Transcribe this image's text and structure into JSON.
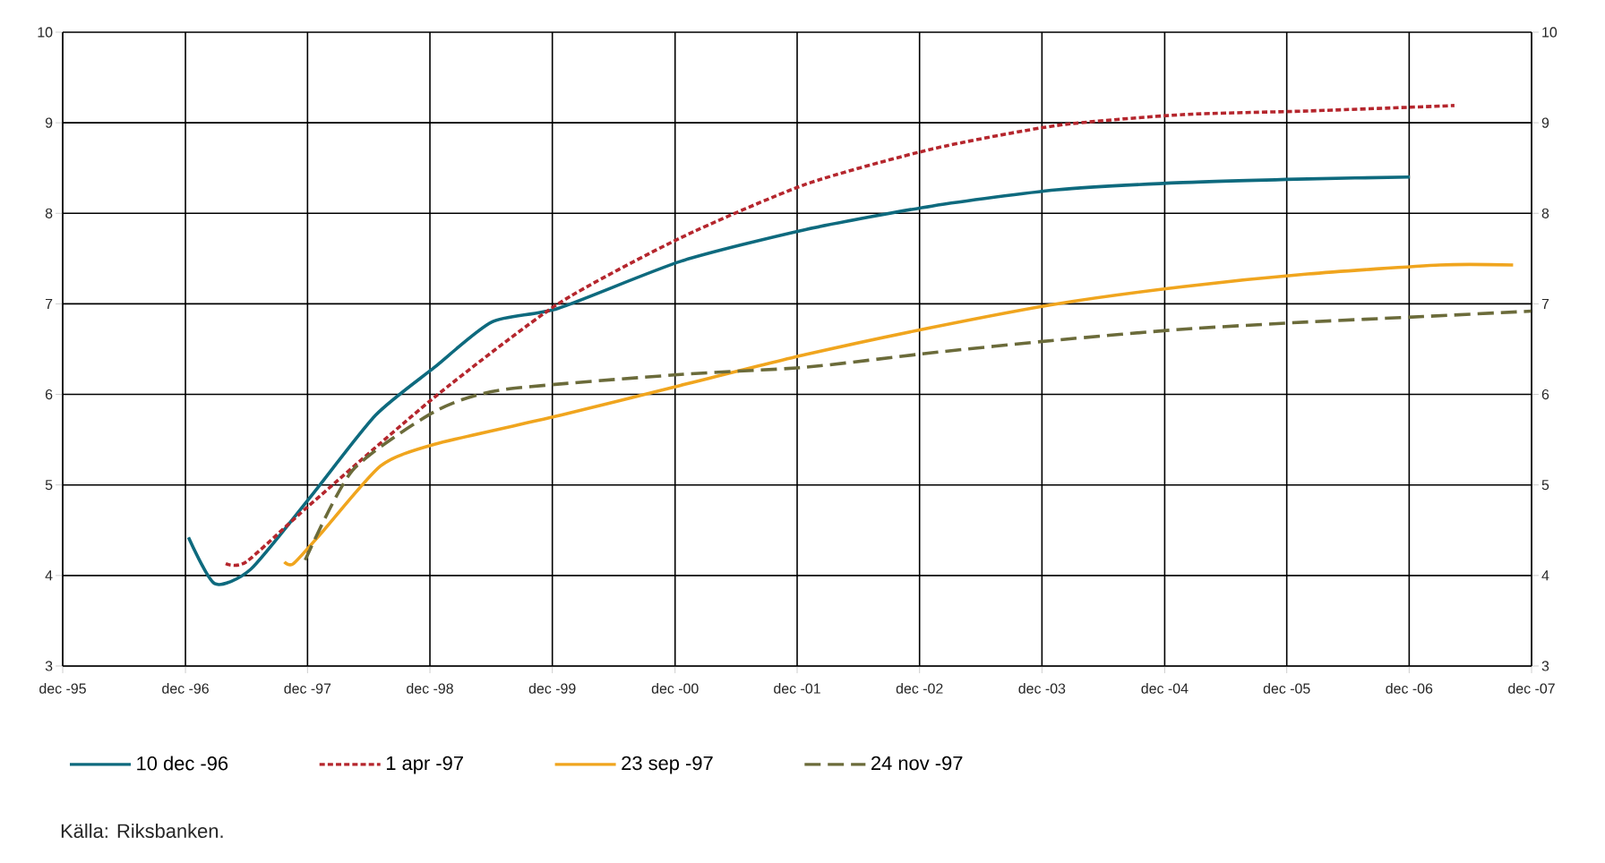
{
  "chart_data": {
    "type": "line",
    "xlim": [
      "1995-12-01",
      "2007-12-01"
    ],
    "xticks": [
      {
        "value": "1995-12-01",
        "label": "dec -95"
      },
      {
        "value": "1996-12-01",
        "label": "dec -96"
      },
      {
        "value": "1997-12-01",
        "label": "dec -97"
      },
      {
        "value": "1998-12-01",
        "label": "dec -98"
      },
      {
        "value": "1999-12-01",
        "label": "dec -99"
      },
      {
        "value": "2000-12-01",
        "label": "dec -00"
      },
      {
        "value": "2001-12-01",
        "label": "dec -01"
      },
      {
        "value": "2002-12-01",
        "label": "dec -02"
      },
      {
        "value": "2003-12-01",
        "label": "dec -03"
      },
      {
        "value": "2004-12-01",
        "label": "dec -04"
      },
      {
        "value": "2005-12-01",
        "label": "dec -05"
      },
      {
        "value": "2006-12-01",
        "label": "dec -06"
      },
      {
        "value": "2007-12-01",
        "label": "dec -07"
      }
    ],
    "ylim": [
      3,
      10
    ],
    "yticks": [
      3,
      4,
      5,
      6,
      7,
      8,
      9,
      10
    ],
    "y2lim": [
      3,
      10
    ],
    "y2ticks": [
      3,
      4,
      5,
      6,
      7,
      8,
      9,
      10
    ],
    "grid": true,
    "legend": "bottom",
    "annotations": [
      "Källa: Riksbanken."
    ],
    "series": [
      {
        "name": "10 dec -96",
        "color": "#0e6a7e",
        "line_style": "solid",
        "x": [
          "1996-12-10",
          "1997-02-27",
          "1997-06-15",
          "1997-12-08",
          "1998-06-22",
          "1998-12-15",
          "1999-06-04",
          "1999-12-18",
          "2000-12-18",
          "2001-12-26",
          "2003-01-07",
          "2004-01-14",
          "2005-01-25",
          "2006-02-02",
          "2006-12-03"
        ],
        "values": [
          4.42,
          3.91,
          4.07,
          4.86,
          5.77,
          6.3,
          6.8,
          6.95,
          7.47,
          7.82,
          8.08,
          8.26,
          8.34,
          8.38,
          8.4
        ]
      },
      {
        "name": "1 apr -97",
        "color": "#b5262d",
        "line_style": "dotted",
        "x": [
          "1997-04-01",
          "1997-06-01",
          "1997-12-08",
          "1998-12-15",
          "1999-12-18",
          "2000-12-18",
          "2001-12-26",
          "2003-01-07",
          "2004-01-14",
          "2005-01-25",
          "2006-02-02",
          "2007-04-15"
        ],
        "values": [
          4.13,
          4.15,
          4.78,
          5.97,
          7.0,
          7.73,
          8.32,
          8.71,
          8.97,
          9.09,
          9.13,
          9.19
        ]
      },
      {
        "name": "23 sep -97",
        "color": "#f0a51e",
        "line_style": "solid",
        "x": [
          "1997-09-23",
          "1997-10-20",
          "1998-01-14",
          "1998-07-07",
          "1998-12-15",
          "1999-12-26",
          "2000-12-18",
          "2001-12-26",
          "2003-01-07",
          "2004-01-14",
          "2005-01-25",
          "2006-02-02",
          "2007-03-03",
          "2007-10-07"
        ],
        "values": [
          4.15,
          4.13,
          4.48,
          5.21,
          5.45,
          5.77,
          6.1,
          6.44,
          6.74,
          7.0,
          7.19,
          7.33,
          7.43,
          7.43
        ]
      },
      {
        "name": "24 nov -97",
        "color": "#6b6b3a",
        "line_style": "dashed",
        "x": [
          "1997-11-24",
          "1998-04-14",
          "1998-12-15",
          "1999-07-03",
          "2000-12-18",
          "2001-12-26",
          "2003-01-07",
          "2004-01-14",
          "2005-01-25",
          "2006-02-02",
          "2007-01-13",
          "2007-12-01"
        ],
        "values": [
          4.17,
          5.16,
          5.81,
          6.05,
          6.22,
          6.3,
          6.46,
          6.6,
          6.72,
          6.8,
          6.86,
          6.92
        ]
      }
    ]
  }
}
